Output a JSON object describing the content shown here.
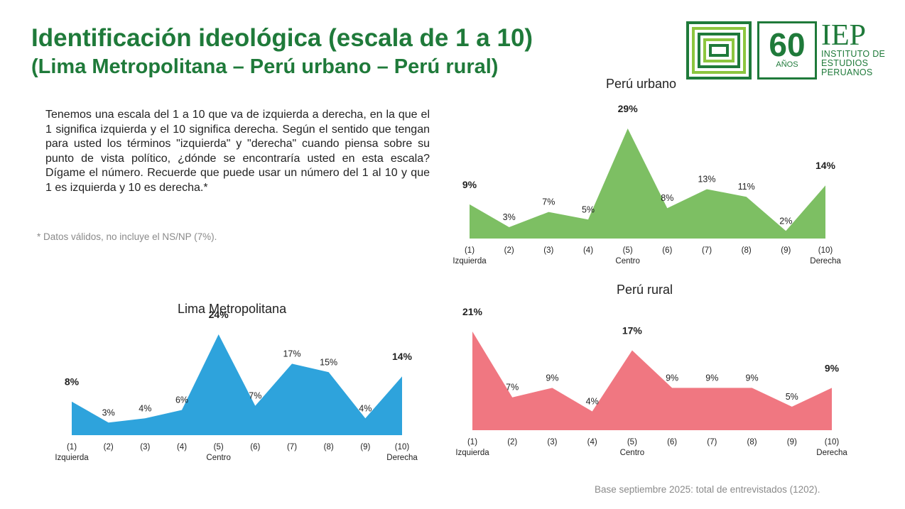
{
  "title": "Identificación ideológica (escala de 1 a 10)",
  "subtitle": "(Lima Metropolitana – Perú urbano – Perú rural)",
  "question": "Tenemos una escala del 1 a 10 que va de izquierda a derecha, en la que el 1 significa izquierda y el 10 significa derecha. Según el sentido que tengan para usted los términos \"izquierda\" y \"derecha\" cuando piensa sobre su punto de vista político, ¿dónde se encontraría usted en esta escala? Dígame el número. Recuerde que puede usar un número del 1 al 10 y que 1 es izquierda y 10 es derecha.*",
  "note": "* Datos válidos, no incluye el NS/NP (7%).",
  "base": "Base septiembre 2025: total de entrevistados (1202).",
  "logo": {
    "anniversary_number": "60",
    "anniversary_word": "AÑOS",
    "org_short": "IEP",
    "org_line1": "INSTITUTO DE",
    "org_line2": "ESTUDIOS",
    "org_line3": "PERUANOS",
    "colors": {
      "green": "#1f7a3a",
      "lime": "#8dc63f"
    }
  },
  "chart_data": [
    {
      "type": "area",
      "title": "Perú urbano",
      "color": "#7dbf63",
      "categories": [
        "(1)",
        "(2)",
        "(3)",
        "(4)",
        "(5)",
        "(6)",
        "(7)",
        "(8)",
        "(9)",
        "(10)"
      ],
      "sublabels": [
        "Izquierda",
        "",
        "",
        "",
        "Centro",
        "",
        "",
        "",
        "",
        "Derecha"
      ],
      "values": [
        9,
        3,
        7,
        5,
        29,
        8,
        13,
        11,
        2,
        14
      ],
      "labels": [
        "9%",
        "3%",
        "7%",
        "5%",
        "29%",
        "8%",
        "13%",
        "11%",
        "2%",
        "14%"
      ],
      "bold": [
        true,
        false,
        false,
        false,
        true,
        false,
        false,
        false,
        false,
        true
      ],
      "ylim": [
        0,
        29
      ]
    },
    {
      "type": "area",
      "title": "Lima Metropolitana",
      "color": "#2ea3dc",
      "categories": [
        "(1)",
        "(2)",
        "(3)",
        "(4)",
        "(5)",
        "(6)",
        "(7)",
        "(8)",
        "(9)",
        "(10)"
      ],
      "sublabels": [
        "Izquierda",
        "",
        "",
        "",
        "Centro",
        "",
        "",
        "",
        "",
        "Derecha"
      ],
      "values": [
        8,
        3,
        4,
        6,
        24,
        7,
        17,
        15,
        4,
        14
      ],
      "labels": [
        "8%",
        "3%",
        "4%",
        "6%",
        "24%",
        "7%",
        "17%",
        "15%",
        "4%",
        "14%"
      ],
      "bold": [
        true,
        false,
        false,
        false,
        true,
        false,
        false,
        false,
        false,
        true
      ],
      "ylim": [
        0,
        24
      ]
    },
    {
      "type": "area",
      "title": "Perú rural",
      "color": "#f07781",
      "categories": [
        "(1)",
        "(2)",
        "(3)",
        "(4)",
        "(5)",
        "(6)",
        "(7)",
        "(8)",
        "(9)",
        "(10)"
      ],
      "sublabels": [
        "Izquierda",
        "",
        "",
        "",
        "Centro",
        "",
        "",
        "",
        "",
        "Derecha"
      ],
      "values": [
        21,
        7,
        9,
        4,
        17,
        9,
        9,
        9,
        5,
        9
      ],
      "labels": [
        "21%",
        "7%",
        "9%",
        "4%",
        "17%",
        "9%",
        "9%",
        "9%",
        "5%",
        "9%"
      ],
      "bold": [
        true,
        false,
        false,
        false,
        true,
        false,
        false,
        false,
        false,
        true
      ],
      "ylim": [
        0,
        21
      ]
    }
  ]
}
